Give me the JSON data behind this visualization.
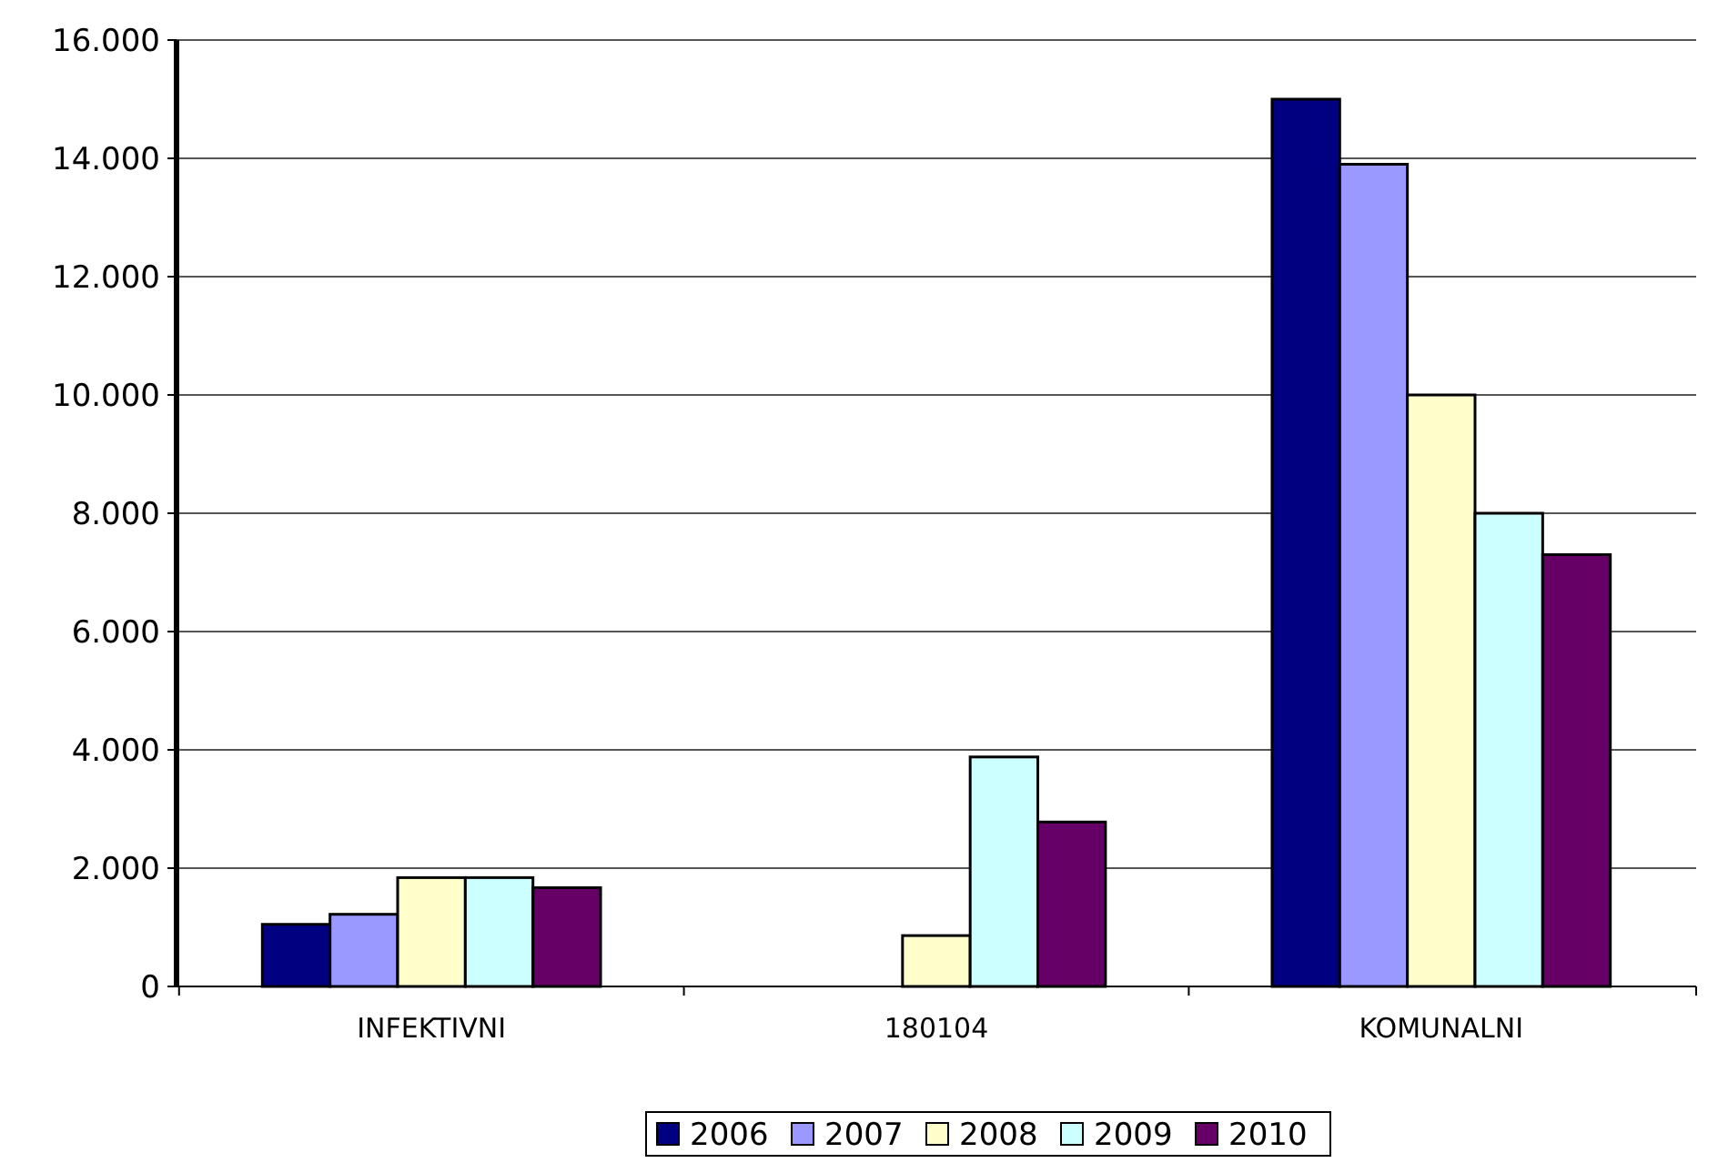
{
  "chart_data": {
    "type": "bar",
    "categories": [
      "INFEKTIVNI",
      "180104",
      "KOMUNALNI"
    ],
    "series": [
      {
        "name": "2006",
        "color": "#000080",
        "values": [
          1050,
          0,
          15000
        ]
      },
      {
        "name": "2007",
        "color": "#9999ff",
        "values": [
          1220,
          0,
          13900
        ]
      },
      {
        "name": "2008",
        "color": "#ffffcc",
        "values": [
          1840,
          860,
          10000
        ]
      },
      {
        "name": "2009",
        "color": "#ccffff",
        "values": [
          1840,
          3880,
          8000
        ]
      },
      {
        "name": "2010",
        "color": "#660066",
        "values": [
          1670,
          2780,
          7300
        ]
      }
    ],
    "ylim": [
      0,
      16000
    ],
    "yticks": [
      0,
      {
        "value": 2000,
        "label": "2.000"
      },
      {
        "value": 4000,
        "label": "4.000"
      },
      {
        "value": 6000,
        "label": "6.000"
      },
      {
        "value": 8000,
        "label": "8.000"
      },
      {
        "value": 10000,
        "label": "10.000"
      },
      {
        "value": 12000,
        "label": "12.000"
      },
      {
        "value": 14000,
        "label": "14.000"
      },
      {
        "value": 16000,
        "label": "16.000"
      }
    ],
    "grid": "y",
    "legend": "bottom"
  }
}
